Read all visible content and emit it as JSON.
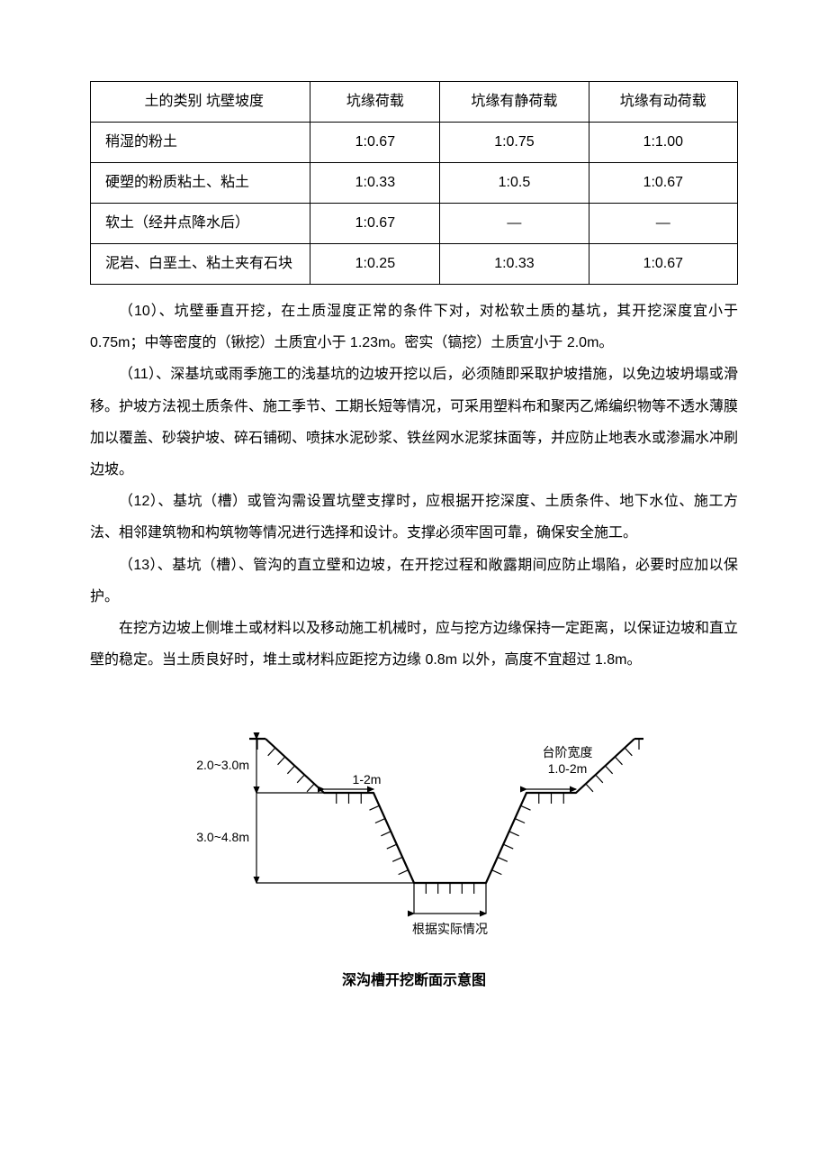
{
  "table": {
    "header": [
      "土的类别  坑壁坡度",
      "坑缘荷载",
      "坑缘有静荷载",
      "坑缘有动荷载"
    ],
    "rows": [
      [
        "稍湿的粉土",
        "1:0.67",
        "1:0.75",
        "1:1.00"
      ],
      [
        "硬塑的粉质粘土、粘土",
        "1:0.33",
        "1:0.5",
        "1:0.67"
      ],
      [
        "软土（经井点降水后）",
        "1:0.67",
        "—",
        "—"
      ],
      [
        "泥岩、白垩土、粘土夹有石块",
        "1:0.25",
        "1:0.33",
        "1:0.67"
      ]
    ]
  },
  "paragraphs": [
    "（10）、坑壁垂直开挖，在土质湿度正常的条件下对，对松软土质的基坑，其开挖深度宜小于 0.75m；中等密度的（锹挖）土质宜小于 1.23m。密实（镐挖）土质宜小于 2.0m。",
    "（11）、深基坑或雨季施工的浅基坑的边坡开挖以后，必须随即采取护坡措施，以免边坡坍塌或滑移。护坡方法视土质条件、施工季节、工期长短等情况，可采用塑料布和聚丙乙烯编织物等不透水薄膜加以覆盖、砂袋护坡、碎石铺砌、喷抹水泥砂浆、铁丝网水泥浆抹面等，并应防止地表水或渗漏水冲刷边坡。",
    "（12）、基坑（槽）或管沟需设置坑壁支撑时，应根据开挖深度、土质条件、地下水位、施工方法、相邻建筑物和构筑物等情况进行选择和设计。支撑必须牢固可靠，确保安全施工。",
    "（13）、基坑（槽）、管沟的直立壁和边坡，在开挖过程和敞露期间应防止塌陷，必要时应加以保护。",
    "在挖方边坡上侧堆土或材料以及移动施工机械时，应与挖方边缘保持一定距离，以保证边坡和直立壁的稳定。当土质良好时，堆土或材料应距挖方边缘 0.8m 以外，高度不宜超过 1.8m。"
  ],
  "diagram": {
    "caption": "深沟槽开挖断面示意图",
    "labels": {
      "upper_depth": "2.0~3.0m",
      "lower_depth": "3.0~4.8m",
      "left_step": "1-2m",
      "right_step_title": "台阶宽度",
      "right_step_value": "1.0-2m",
      "bottom": "根据实际情况"
    },
    "stroke": "#000000",
    "stroke_width_main": 2.2,
    "stroke_width_thin": 1.2,
    "hatch_spacing": 12,
    "font_size_label": 14
  }
}
